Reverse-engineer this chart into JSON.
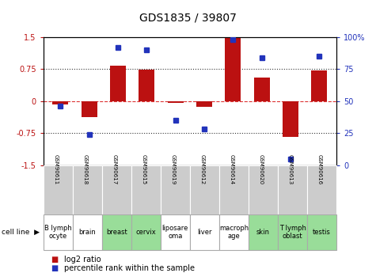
{
  "title": "GDS1835 / 39807",
  "samples": [
    "GSM90611",
    "GSM90618",
    "GSM90617",
    "GSM90615",
    "GSM90619",
    "GSM90612",
    "GSM90614",
    "GSM90620",
    "GSM90613",
    "GSM90616"
  ],
  "cell_lines": [
    "B lymph\nocyte",
    "brain",
    "breast",
    "cervix",
    "liposare\noma",
    "liver",
    "macroph\nage",
    "skin",
    "T lymph\noblast",
    "testis"
  ],
  "cell_bg": [
    "white",
    "white",
    "green",
    "green",
    "white",
    "white",
    "white",
    "green",
    "green",
    "green"
  ],
  "log2_ratio": [
    -0.08,
    -0.38,
    0.82,
    0.74,
    -0.04,
    -0.13,
    1.5,
    0.55,
    -0.83,
    0.72
  ],
  "percentile_rank": [
    46,
    24,
    92,
    90,
    35,
    28,
    98,
    84,
    5,
    85
  ],
  "ylim_left": [
    -1.5,
    1.5
  ],
  "ylim_right": [
    0,
    100
  ],
  "bar_color": "#bb1111",
  "dot_color": "#2233bb",
  "bg_color_gsm": "#cccccc",
  "bg_color_white": "#ffffff",
  "bg_color_green": "#99dd99",
  "zero_line_color": "#dd3333",
  "dotted_line_color": "#333333",
  "title_fontsize": 10,
  "tick_fontsize": 7,
  "legend_fontsize": 7,
  "sample_fontsize": 5,
  "cell_fontsize": 6
}
